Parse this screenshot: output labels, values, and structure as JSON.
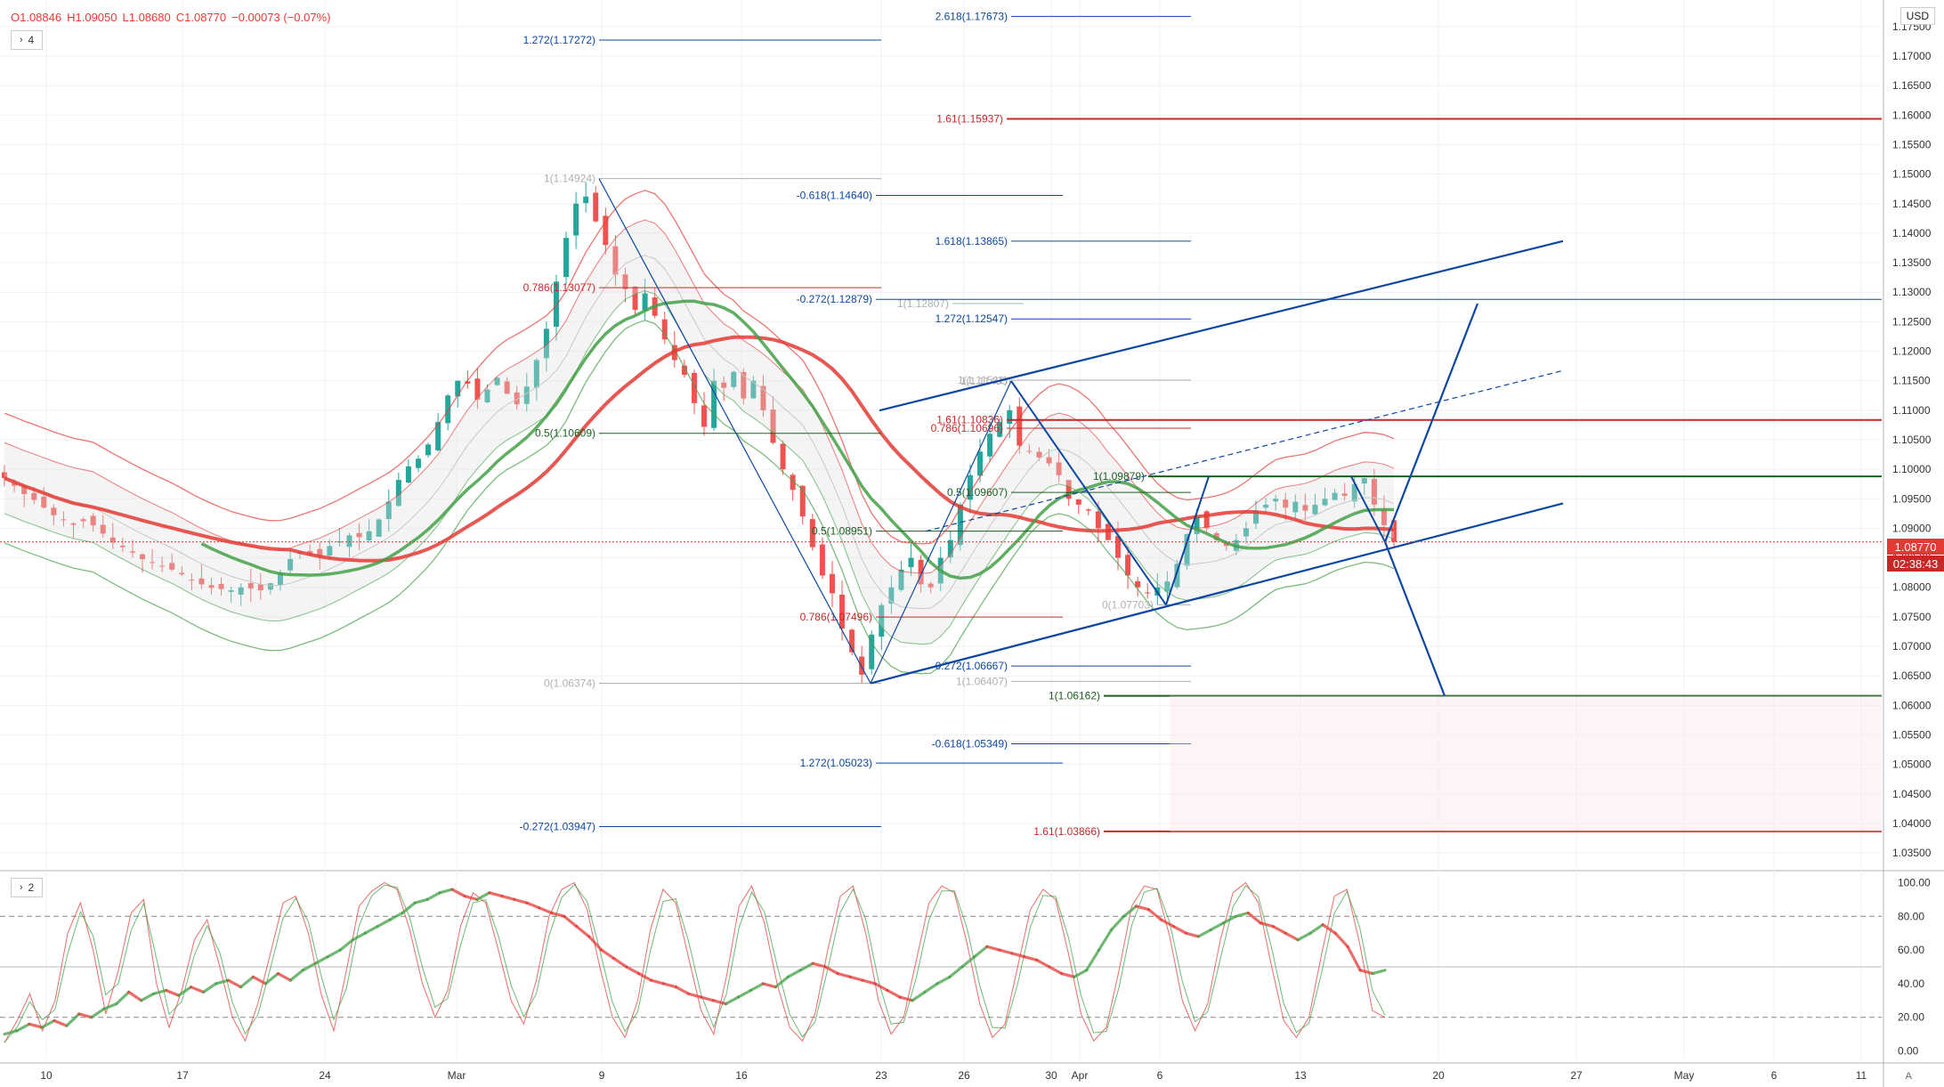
{
  "ohlc": {
    "open": "O1.08846",
    "high": "H1.09050",
    "low": "L1.08680",
    "close": "C1.08770",
    "change": "−0.00073 (−0.07%)"
  },
  "main_pane_button": {
    "chevron": "›",
    "label": "4"
  },
  "osc_pane_button": {
    "chevron": "›",
    "label": "2"
  },
  "currency_label": "USD",
  "last_price": "1.08770",
  "countdown": "02:38:43",
  "auto_label": "A",
  "colors": {
    "bull": "#26a69a",
    "bear": "#ef5350",
    "fib_blue": "#0d47a1",
    "fib_red": "#c62828",
    "fib_green": "#1b5e20",
    "ma_red": "#e53935",
    "ma_green": "#43a047"
  },
  "chart_data": [
    {
      "type": "candlestick",
      "symbol_currency": "USD",
      "y_ticks": [
        "1.03500",
        "1.04000",
        "1.04500",
        "1.05000",
        "1.05500",
        "1.06000",
        "1.06500",
        "1.07000",
        "1.07500",
        "1.08000",
        "1.08500",
        "1.09000",
        "1.09500",
        "1.10000",
        "1.10500",
        "1.11000",
        "1.11500",
        "1.12000",
        "1.12500",
        "1.13000",
        "1.13500",
        "1.14000",
        "1.14500",
        "1.15000",
        "1.15500",
        "1.16000",
        "1.16500",
        "1.17000",
        "1.17500"
      ],
      "ylim": [
        1.032,
        1.1795
      ],
      "x_ticks": [
        "10",
        "17",
        "24",
        "Mar",
        "9",
        "16",
        "23",
        "26",
        "30",
        "Apr",
        "6",
        "13",
        "20",
        "27",
        "May",
        "6",
        "11"
      ],
      "fib_labels": [
        {
          "text": "2.618(1.17673)",
          "price": 1.17673,
          "color": "blue"
        },
        {
          "text": "1.272(1.17272)",
          "price": 1.17272,
          "color": "blue"
        },
        {
          "text": "1.61(1.15937)",
          "price": 1.15937,
          "color": "red"
        },
        {
          "text": "1(1.14924)",
          "price": 1.14924,
          "color": "gray"
        },
        {
          "text": "-0.618(1.14640)",
          "price": 1.1464,
          "color": "blue"
        },
        {
          "text": "1.618(1.13865)",
          "price": 1.13865,
          "color": "blue"
        },
        {
          "text": "0.786(1.13077)",
          "price": 1.13077,
          "color": "red"
        },
        {
          "text": "1(1.12807)",
          "price": 1.12807,
          "color": "gray"
        },
        {
          "text": "-0.272(1.12879)",
          "price": 1.12879,
          "color": "blue"
        },
        {
          "text": "1.272(1.12547)",
          "price": 1.12547,
          "color": "blue"
        },
        {
          "text": "1(1.11495)",
          "price": 1.11495,
          "color": "gray"
        },
        {
          "text": "1(1.11511)",
          "price": 1.11511,
          "color": "gray"
        },
        {
          "text": "1.61(1.10836)",
          "price": 1.10836,
          "color": "red"
        },
        {
          "text": "0.786(1.10696)",
          "price": 1.10696,
          "color": "red"
        },
        {
          "text": "0.5(1.10609)",
          "price": 1.10609,
          "color": "green"
        },
        {
          "text": "1(1.09879)",
          "price": 1.09879,
          "color": "green"
        },
        {
          "text": "0.5(1.09607)",
          "price": 1.09607,
          "color": "green"
        },
        {
          "text": "0.5(1.08951)",
          "price": 1.08951,
          "color": "green"
        },
        {
          "text": "0(1.07703)",
          "price": 1.07703,
          "color": "gray"
        },
        {
          "text": "0.786(1.07496)",
          "price": 1.07496,
          "color": "red"
        },
        {
          "text": "-0.272(1.06667)",
          "price": 1.06667,
          "color": "blue"
        },
        {
          "text": "1(1.06407)",
          "price": 1.06407,
          "color": "gray"
        },
        {
          "text": "0(1.06374)",
          "price": 1.06374,
          "color": "gray"
        },
        {
          "text": "1(1.06162)",
          "price": 1.06162,
          "color": "green"
        },
        {
          "text": "-0.618(1.05349)",
          "price": 1.05349,
          "color": "blue"
        },
        {
          "text": "1.272(1.05023)",
          "price": 1.05023,
          "color": "blue"
        },
        {
          "text": "-0.272(1.03947)",
          "price": 1.03947,
          "color": "blue"
        },
        {
          "text": "1.61(1.03866)",
          "price": 1.03866,
          "color": "red"
        }
      ],
      "close_series": [
        1.0985,
        1.0972,
        1.0958,
        1.0948,
        1.0935,
        1.0922,
        1.0915,
        1.0906,
        1.0912,
        1.0905,
        1.0891,
        1.0876,
        1.0868,
        1.0859,
        1.0848,
        1.0842,
        1.0836,
        1.083,
        1.0822,
        1.0812,
        1.0805,
        1.0799,
        1.0797,
        1.0795,
        1.08,
        1.0798,
        1.0795,
        1.0807,
        1.0825,
        1.0848,
        1.086,
        1.0855,
        1.0852,
        1.087,
        1.0878,
        1.0888,
        1.0885,
        1.0895,
        1.0915,
        1.0945,
        1.0982,
        1.1005,
        1.1018,
        1.1042,
        1.108,
        1.1125,
        1.115,
        1.1145,
        1.1118,
        1.1135,
        1.1155,
        1.1128,
        1.111,
        1.114,
        1.1185,
        1.1238,
        1.1318,
        1.1392,
        1.145,
        1.1462,
        1.142,
        1.138,
        1.133,
        1.1305,
        1.127,
        1.1298,
        1.126,
        1.122,
        1.1185,
        1.116,
        1.1112,
        1.1072,
        1.115,
        1.1138,
        1.1165,
        1.112,
        1.115,
        1.11,
        1.1045,
        1.1,
        1.0965,
        1.092,
        1.0868,
        1.082,
        1.079,
        1.073,
        1.069,
        1.0652,
        1.072,
        1.077,
        1.08,
        1.083,
        1.085,
        1.0805,
        1.08,
        1.085,
        1.088,
        1.094,
        1.099,
        1.103,
        1.106,
        1.108,
        1.11,
        1.104,
        1.103,
        1.102,
        1.101,
        1.099,
        1.095,
        1.094,
        1.093,
        1.09,
        1.088,
        1.085,
        1.082,
        1.08,
        1.079,
        1.08,
        1.081,
        1.084,
        1.089,
        1.092,
        1.09,
        1.088,
        1.087,
        1.088,
        1.09,
        1.093,
        1.094,
        1.095,
        1.0935,
        1.0945,
        1.093,
        1.094,
        1.095,
        1.096,
        1.0955,
        1.0975,
        1.0985,
        1.094,
        1.0905,
        1.0877
      ]
    },
    {
      "type": "line",
      "indicator": "oscillator",
      "y_ticks": [
        "0.00",
        "20.00",
        "40.00",
        "60.00",
        "80.00",
        "100.00"
      ],
      "ylim": [
        -5,
        105
      ],
      "levels": [
        20,
        80
      ],
      "slow_series": [
        10,
        12,
        16,
        14,
        18,
        15,
        22,
        20,
        25,
        28,
        35,
        30,
        34,
        36,
        33,
        38,
        35,
        40,
        42,
        38,
        44,
        40,
        46,
        42,
        48,
        52,
        56,
        60,
        66,
        70,
        74,
        78,
        82,
        88,
        90,
        94,
        96,
        92,
        90,
        94,
        92,
        90,
        88,
        85,
        82,
        80,
        74,
        68,
        60,
        55,
        50,
        46,
        42,
        40,
        38,
        34,
        32,
        30,
        28,
        32,
        36,
        40,
        38,
        44,
        48,
        52,
        50,
        46,
        44,
        42,
        40,
        36,
        32,
        30,
        35,
        40,
        44,
        50,
        56,
        62,
        60,
        58,
        56,
        54,
        50,
        46,
        44,
        48,
        60,
        72,
        80,
        86,
        84,
        78,
        74,
        70,
        68,
        72,
        76,
        80,
        82,
        76,
        74,
        70,
        66,
        70,
        75,
        70,
        62,
        48,
        46,
        48
      ],
      "fast_series": [
        5,
        18,
        34,
        12,
        30,
        70,
        88,
        60,
        22,
        48,
        82,
        90,
        40,
        14,
        36,
        66,
        78,
        50,
        20,
        6,
        28,
        58,
        88,
        92,
        70,
        34,
        12,
        48,
        86,
        95,
        100,
        96,
        72,
        40,
        20,
        36,
        74,
        94,
        88,
        60,
        30,
        16,
        42,
        80,
        96,
        100,
        84,
        50,
        20,
        8,
        30,
        72,
        96,
        88,
        56,
        24,
        10,
        44,
        86,
        98,
        76,
        40,
        14,
        6,
        22,
        60,
        92,
        98,
        70,
        30,
        10,
        20,
        54,
        88,
        98,
        94,
        64,
        28,
        8,
        16,
        50,
        84,
        96,
        90,
        58,
        22,
        6,
        14,
        48,
        86,
        98,
        96,
        68,
        30,
        12,
        28,
        66,
        94,
        100,
        88,
        52,
        18,
        8,
        20,
        58,
        92,
        96,
        64,
        24,
        20
      ]
    }
  ]
}
